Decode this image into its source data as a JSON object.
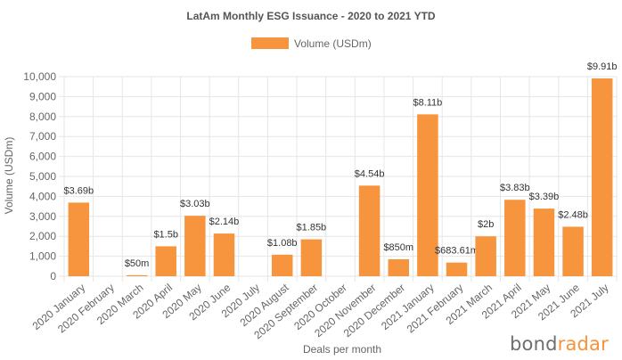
{
  "chart_data": {
    "type": "bar",
    "title": "LatAm Monthly ESG Issuance - 2020 to 2021 YTD",
    "xlabel": "Deals per month",
    "ylabel": "Volume (USDm)",
    "ylim": [
      0,
      10000
    ],
    "yticks": [
      0,
      1000,
      2000,
      3000,
      4000,
      5000,
      6000,
      7000,
      8000,
      9000,
      10000
    ],
    "ytick_labels": [
      "0",
      "1,000",
      "2,000",
      "3,000",
      "4,000",
      "5,000",
      "6,000",
      "7,000",
      "8,000",
      "9,000",
      "10,000"
    ],
    "grid": true,
    "legend_position": "top-center",
    "series": [
      {
        "name": "Volume (USDm)",
        "color": "#f7953f",
        "values": [
          3690,
          0,
          50,
          1500,
          3030,
          2140,
          0,
          1080,
          1850,
          0,
          4540,
          850,
          8110,
          683.61,
          2000,
          3830,
          3390,
          2480,
          9910
        ],
        "labels": [
          "$3.69b",
          "",
          "$50m",
          "$1.5b",
          "$3.03b",
          "$2.14b",
          "",
          "$1.08b",
          "$1.85b",
          "",
          "$4.54b",
          "$850m",
          "$8.11b",
          "$683.61m",
          "$2b",
          "$3.83b",
          "$3.39b",
          "$2.48b",
          "$9.91b"
        ]
      }
    ],
    "categories": [
      "2020 January",
      "2020 February",
      "2020 March",
      "2020 April",
      "2020 May",
      "2020 June",
      "2020 July",
      "2020 August",
      "2020 September",
      "2020 October",
      "2020 November",
      "2020 December",
      "2021 January",
      "2021 February",
      "2021 March",
      "2021 April",
      "2021 May",
      "2021 June",
      "2021 July"
    ]
  },
  "branding": {
    "part1": "bond",
    "part2": "radar"
  }
}
